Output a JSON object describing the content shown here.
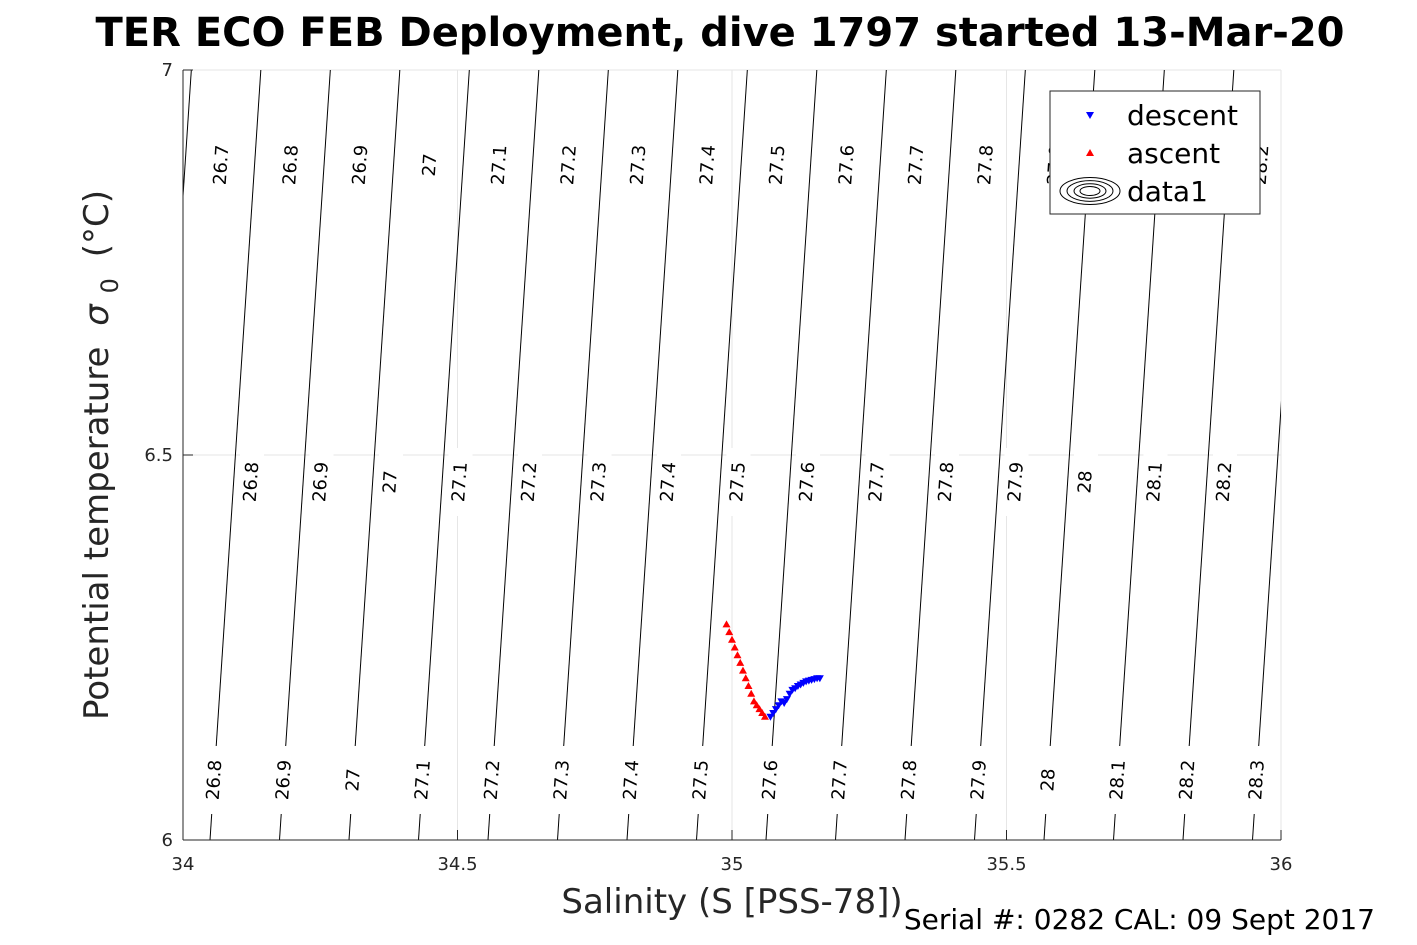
{
  "chart_data": {
    "type": "scatter",
    "title": "TER ECO FEB Deployment, dive 1797 started 13-Mar-20",
    "xlabel": "Salinity (S [PSS-78])",
    "ylabel": "Potential temperature",
    "ylabel_symbol": "σ",
    "ylabel_subscript": "0",
    "ylabel_unit": "(°C)",
    "xlim": [
      34,
      36
    ],
    "ylim": [
      6,
      7
    ],
    "x_ticks": [
      "34",
      "34.5",
      "35",
      "35.5",
      "36"
    ],
    "y_ticks": [
      "6",
      "6.5",
      "7"
    ],
    "grid": true,
    "legend_position": "top-right",
    "legend": [
      "descent",
      "ascent",
      "data1"
    ],
    "series": [
      {
        "name": "descent",
        "color": "#0000ff",
        "marker": "triangle-down",
        "x": [
          35.07,
          35.075,
          35.08,
          35.085,
          35.09,
          35.095,
          35.1,
          35.105,
          35.11,
          35.115,
          35.12,
          35.125,
          35.13,
          35.135,
          35.14,
          35.145,
          35.15,
          35.155,
          35.16
        ],
        "y": [
          6.16,
          6.165,
          6.17,
          6.175,
          6.18,
          6.178,
          6.183,
          6.19,
          6.195,
          6.197,
          6.2,
          6.202,
          6.204,
          6.206,
          6.207,
          6.208,
          6.209,
          6.21,
          6.21
        ]
      },
      {
        "name": "ascent",
        "color": "#ff0000",
        "marker": "triangle-up",
        "x": [
          34.99,
          34.995,
          35.0,
          35.005,
          35.01,
          35.015,
          35.02,
          35.025,
          35.03,
          35.035,
          35.04,
          35.045,
          35.05,
          35.055,
          35.06
        ],
        "y": [
          6.28,
          6.27,
          6.26,
          6.25,
          6.24,
          6.23,
          6.22,
          6.21,
          6.2,
          6.19,
          6.18,
          6.175,
          6.17,
          6.165,
          6.16
        ]
      }
    ],
    "contours": {
      "color": "#000000",
      "top_row_labels": [
        "26.7",
        "26.8",
        "26.9",
        "27",
        "27.1",
        "27.2",
        "27.3",
        "27.4",
        "27.5",
        "27.6",
        "27.7",
        "27.8",
        "27.9",
        "28.2"
      ],
      "middle_row_labels": [
        "26.8",
        "26.9",
        "27",
        "27.1",
        "27.2",
        "27.3",
        "27.4",
        "27.5",
        "27.6",
        "27.7",
        "27.8",
        "27.9",
        "28",
        "28.1",
        "28.2"
      ],
      "bottom_row_labels": [
        "26.8",
        "26.9",
        "27",
        "27.1",
        "27.2",
        "27.3",
        "27.4",
        "27.5",
        "27.6",
        "27.7",
        "27.8",
        "27.9",
        "28",
        "28.1",
        "28.2",
        "28.3"
      ]
    }
  },
  "footer": {
    "serial": "Serial #: 0282  CAL: 09 Sept 2017"
  }
}
